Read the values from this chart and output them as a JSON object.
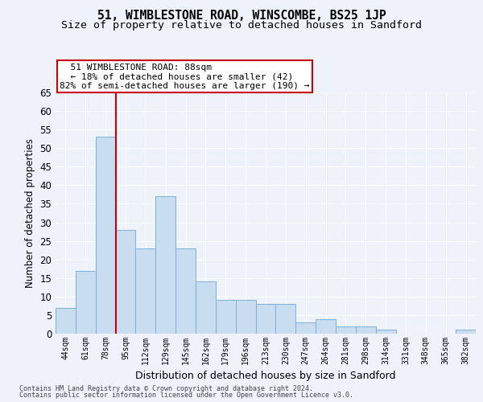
{
  "title": "51, WIMBLESTONE ROAD, WINSCOMBE, BS25 1JP",
  "subtitle": "Size of property relative to detached houses in Sandford",
  "xlabel": "Distribution of detached houses by size in Sandford",
  "ylabel": "Number of detached properties",
  "footer_line1": "Contains HM Land Registry data © Crown copyright and database right 2024.",
  "footer_line2": "Contains public sector information licensed under the Open Government Licence v3.0.",
  "annotation_line1": "  51 WIMBLESTONE ROAD: 88sqm",
  "annotation_line2": "  ← 18% of detached houses are smaller (42)",
  "annotation_line3": "82% of semi-detached houses are larger (190) →",
  "categories": [
    "44sqm",
    "61sqm",
    "78sqm",
    "95sqm",
    "112sqm",
    "129sqm",
    "145sqm",
    "162sqm",
    "179sqm",
    "196sqm",
    "213sqm",
    "230sqm",
    "247sqm",
    "264sqm",
    "281sqm",
    "298sqm",
    "314sqm",
    "331sqm",
    "348sqm",
    "365sqm",
    "382sqm"
  ],
  "values": [
    7,
    17,
    53,
    28,
    23,
    37,
    23,
    14,
    9,
    9,
    8,
    8,
    3,
    4,
    2,
    2,
    1,
    0,
    0,
    0,
    1
  ],
  "bar_color": "#c9ddf0",
  "bar_edge_color": "#7fb0d8",
  "vline_x": 2.5,
  "vline_color": "#cc0000",
  "ylim": [
    0,
    65
  ],
  "yticks": [
    0,
    5,
    10,
    15,
    20,
    25,
    30,
    35,
    40,
    45,
    50,
    55,
    60,
    65
  ],
  "bg_color": "#edf2fb",
  "grid_color": "#ffffff",
  "title_fontsize": 10.5,
  "subtitle_fontsize": 9.5,
  "annotation_box_color": "#ffffff",
  "annotation_box_edge": "#cc0000"
}
